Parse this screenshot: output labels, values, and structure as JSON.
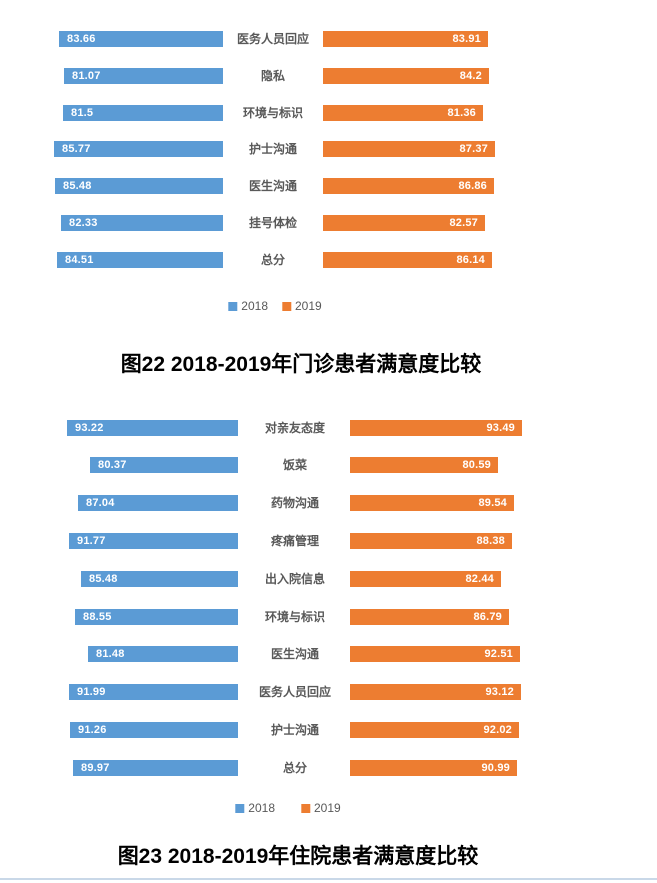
{
  "colors": {
    "series_2018": "#5B9BD5",
    "series_2019": "#ED7D31",
    "category_label": "#595959",
    "value_label": "#FFFFFF",
    "title": "#000000",
    "bottom_divider": "#C9D8E8"
  },
  "chart_data": [
    {
      "type": "bar",
      "variant": "tornado-comparison",
      "title": "图22 2018-2019年门诊患者满意度比较",
      "categories": [
        "医务人员回应",
        "隐私",
        "环境与标识",
        "护士沟通",
        "医生沟通",
        "挂号体检",
        "总分"
      ],
      "series": [
        {
          "name": "2018",
          "color": "#5B9BD5",
          "side": "left",
          "values": [
            83.66,
            81.07,
            81.5,
            85.77,
            85.48,
            82.33,
            84.51
          ]
        },
        {
          "name": "2019",
          "color": "#ED7D31",
          "side": "right",
          "values": [
            83.91,
            84.2,
            81.36,
            87.37,
            86.86,
            82.57,
            86.14
          ]
        }
      ],
      "value_labels": "inside-end",
      "value_range": [
        0,
        100
      ],
      "grid": false,
      "legend_position": "bottom",
      "legend": [
        "2018",
        "2019"
      ]
    },
    {
      "type": "bar",
      "variant": "tornado-comparison",
      "title": "图23 2018-2019年住院患者满意度比较",
      "categories": [
        "对亲友态度",
        "饭菜",
        "药物沟通",
        "疼痛管理",
        "出入院信息",
        "环境与标识",
        "医生沟通",
        "医务人员回应",
        "护士沟通",
        "总分"
      ],
      "series": [
        {
          "name": "2018",
          "color": "#5B9BD5",
          "side": "left",
          "values": [
            93.22,
            80.37,
            87.04,
            91.77,
            85.48,
            88.55,
            81.48,
            91.99,
            91.26,
            89.97
          ]
        },
        {
          "name": "2019",
          "color": "#ED7D31",
          "side": "right",
          "values": [
            93.49,
            80.59,
            89.54,
            88.38,
            82.44,
            86.79,
            92.51,
            93.12,
            92.02,
            90.99
          ]
        }
      ],
      "value_labels": "inside-end",
      "value_range": [
        0,
        100
      ],
      "grid": false,
      "legend_position": "bottom",
      "legend": [
        "2018",
        "2019"
      ]
    }
  ]
}
